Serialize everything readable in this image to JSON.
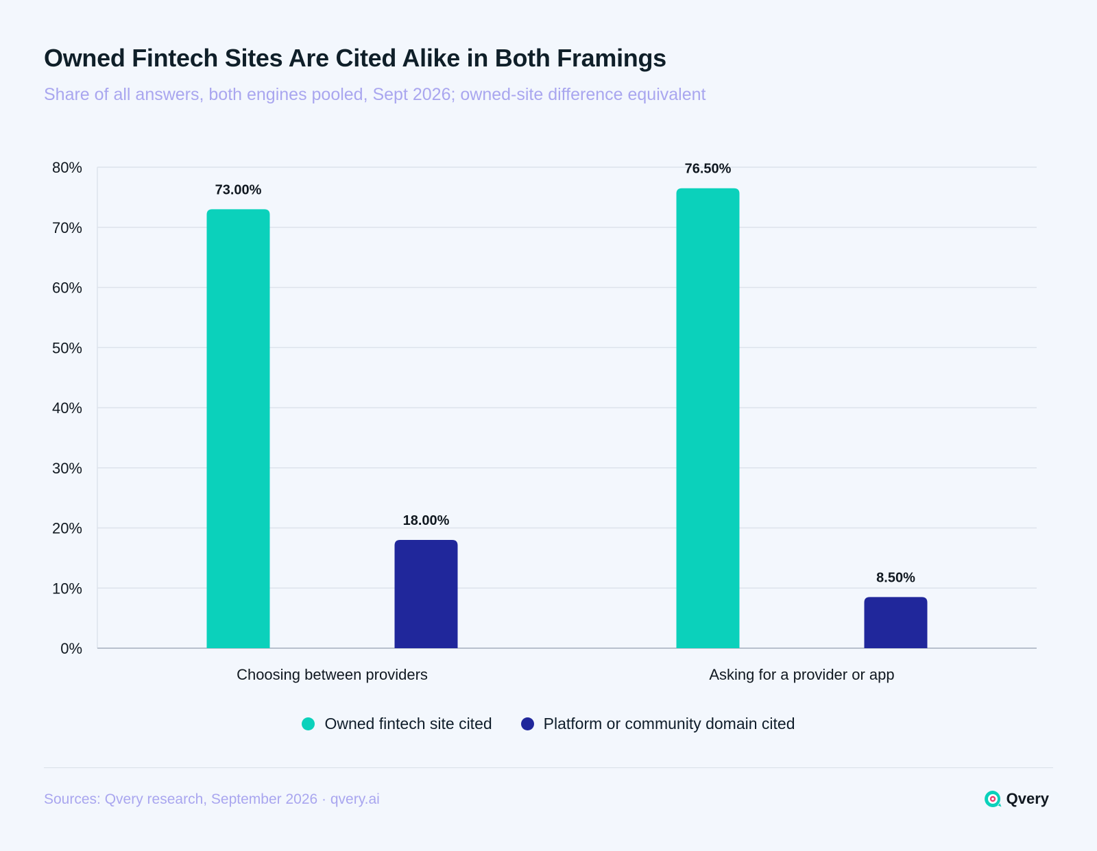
{
  "header": {
    "title": "Owned Fintech Sites Are Cited Alike in Both Framings",
    "subtitle": "Share of all answers, both engines pooled, Sept 2026; owned-site difference equivalent"
  },
  "colors": {
    "owned": "#0bd1bb",
    "platform": "#20279b",
    "grid": "#dde3ec",
    "axis": "#b8c0cd",
    "accent": "#a9a6ef"
  },
  "chart_data": {
    "type": "bar",
    "categories": [
      "Choosing between providers",
      "Asking for a provider or app"
    ],
    "series": [
      {
        "name": "Owned fintech site cited",
        "values": [
          73.0,
          76.5
        ],
        "labels": [
          "73.00%",
          "76.50%"
        ]
      },
      {
        "name": "Platform or community domain cited",
        "values": [
          18.0,
          8.5
        ],
        "labels": [
          "18.00%",
          "8.50%"
        ]
      }
    ],
    "title": "",
    "xlabel": "",
    "ylabel": "",
    "ylim": [
      0,
      80
    ],
    "yticks": [
      "0%",
      "10%",
      "20%",
      "30%",
      "40%",
      "50%",
      "60%",
      "70%",
      "80%"
    ],
    "grid": true,
    "legend_position": "bottom-center"
  },
  "legend": {
    "items": [
      {
        "label": "Owned fintech site cited"
      },
      {
        "label": "Platform or community domain cited"
      }
    ]
  },
  "footer": {
    "sources": "Sources: Qvery research, September 2026 · qvery.ai",
    "brand": "Qvery",
    "brand_icon": "qvery-logo-icon"
  }
}
